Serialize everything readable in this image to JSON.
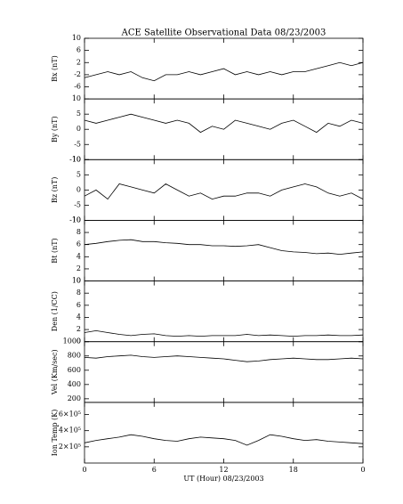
{
  "chart_data": [
    {
      "type": "line",
      "title": "ACE Satellite Observational Data   08/23/2003",
      "ylabel": "Bx (nT)",
      "x": [
        0,
        1,
        2,
        3,
        4,
        5,
        6,
        7,
        8,
        9,
        10,
        11,
        12,
        13,
        14,
        15,
        16,
        17,
        18,
        19,
        20,
        21,
        22,
        23,
        24
      ],
      "values": [
        -3,
        -2,
        -1,
        -2,
        -1,
        -3,
        -4,
        -2,
        -2,
        -1,
        -2,
        -1,
        0,
        -2,
        -1,
        -2,
        -1,
        -2,
        -1,
        -1,
        0,
        1,
        2,
        1,
        2
      ],
      "xlim": [
        0,
        24
      ],
      "ylim": [
        -10,
        10
      ],
      "yticks": [
        -6,
        -2,
        2,
        6,
        10
      ]
    },
    {
      "type": "line",
      "ylabel": "By (nT)",
      "x": [
        0,
        1,
        2,
        3,
        4,
        5,
        6,
        7,
        8,
        9,
        10,
        11,
        12,
        13,
        14,
        15,
        16,
        17,
        18,
        19,
        20,
        21,
        22,
        23,
        24
      ],
      "values": [
        3,
        2,
        3,
        4,
        5,
        4,
        3,
        2,
        3,
        2,
        -1,
        1,
        0,
        3,
        2,
        1,
        0,
        2,
        3,
        1,
        -1,
        2,
        1,
        3,
        2
      ],
      "xlim": [
        0,
        24
      ],
      "ylim": [
        -10,
        10
      ],
      "yticks": [
        -10,
        -5,
        0,
        5,
        10
      ]
    },
    {
      "type": "line",
      "ylabel": "Bz (nT)",
      "x": [
        0,
        1,
        2,
        3,
        4,
        5,
        6,
        7,
        8,
        9,
        10,
        11,
        12,
        13,
        14,
        15,
        16,
        17,
        18,
        19,
        20,
        21,
        22,
        23,
        24
      ],
      "values": [
        -2,
        0,
        -3,
        2,
        1,
        0,
        -1,
        2,
        0,
        -2,
        -1,
        -3,
        -2,
        -2,
        -1,
        -1,
        -2,
        0,
        1,
        2,
        1,
        -1,
        -2,
        -1,
        -3
      ],
      "xlim": [
        0,
        24
      ],
      "ylim": [
        -10,
        10
      ],
      "yticks": [
        -10,
        -5,
        0,
        5,
        10
      ]
    },
    {
      "type": "line",
      "ylabel": "Bt (nT)",
      "x": [
        0,
        1,
        2,
        3,
        4,
        5,
        6,
        7,
        8,
        9,
        10,
        11,
        12,
        13,
        14,
        15,
        16,
        17,
        18,
        19,
        20,
        21,
        22,
        23,
        24
      ],
      "values": [
        6,
        6.2,
        6.5,
        6.7,
        6.8,
        6.5,
        6.5,
        6.3,
        6.2,
        6,
        6,
        5.8,
        5.8,
        5.7,
        5.8,
        6,
        5.5,
        5,
        4.8,
        4.7,
        4.5,
        4.6,
        4.4,
        4.6,
        4.8
      ],
      "xlim": [
        0,
        24
      ],
      "ylim": [
        0,
        10
      ],
      "yticks": [
        0,
        2,
        4,
        6,
        8,
        10
      ]
    },
    {
      "type": "line",
      "ylabel": "Den (1/CC)",
      "x": [
        0,
        1,
        2,
        3,
        4,
        5,
        6,
        7,
        8,
        9,
        10,
        11,
        12,
        13,
        14,
        15,
        16,
        17,
        18,
        19,
        20,
        21,
        22,
        23,
        24
      ],
      "values": [
        1.5,
        1.8,
        1.5,
        1.2,
        1.0,
        1.2,
        1.3,
        1.0,
        0.9,
        1.0,
        0.9,
        1.0,
        1.0,
        1.0,
        1.2,
        1.0,
        1.1,
        1.0,
        0.9,
        1.0,
        1.0,
        1.1,
        1.0,
        1.0,
        1.1
      ],
      "xlim": [
        0,
        24
      ],
      "ylim": [
        0,
        10
      ],
      "yticks": [
        0,
        2,
        4,
        6,
        8,
        10
      ]
    },
    {
      "type": "line",
      "ylabel": "Vel (Km/sec)",
      "x": [
        0,
        1,
        2,
        3,
        4,
        5,
        6,
        7,
        8,
        9,
        10,
        11,
        12,
        13,
        14,
        15,
        16,
        17,
        18,
        19,
        20,
        21,
        22,
        23,
        24
      ],
      "values": [
        780,
        770,
        790,
        800,
        810,
        790,
        780,
        790,
        800,
        790,
        780,
        770,
        760,
        740,
        720,
        730,
        750,
        760,
        770,
        760,
        750,
        750,
        760,
        770,
        760
      ],
      "xlim": [
        0,
        24
      ],
      "ylim": [
        150,
        1000
      ],
      "yticks": [
        200,
        400,
        600,
        800,
        1000
      ]
    },
    {
      "type": "line",
      "ylabel": "Ion Temp (K)",
      "xlabel": "UT (Hour)  08/23/2003",
      "x": [
        0,
        1,
        2,
        3,
        4,
        5,
        6,
        7,
        8,
        9,
        10,
        11,
        12,
        13,
        14,
        15,
        16,
        17,
        18,
        19,
        20,
        21,
        22,
        23,
        24
      ],
      "values": [
        250000,
        280000,
        300000,
        320000,
        350000,
        330000,
        300000,
        280000,
        270000,
        300000,
        320000,
        310000,
        300000,
        280000,
        220000,
        280000,
        350000,
        330000,
        300000,
        280000,
        290000,
        270000,
        260000,
        250000,
        240000
      ],
      "xlim": [
        0,
        24
      ],
      "ylim": [
        0,
        750000
      ],
      "yticks": [
        {
          "value": 200000,
          "label": "2×10⁵"
        },
        {
          "value": 400000,
          "label": "4×10⁵"
        },
        {
          "value": 600000,
          "label": "6×10⁵"
        }
      ],
      "xticks": [
        0,
        6,
        12,
        18,
        {
          "value": 24,
          "label": "0"
        }
      ]
    }
  ]
}
